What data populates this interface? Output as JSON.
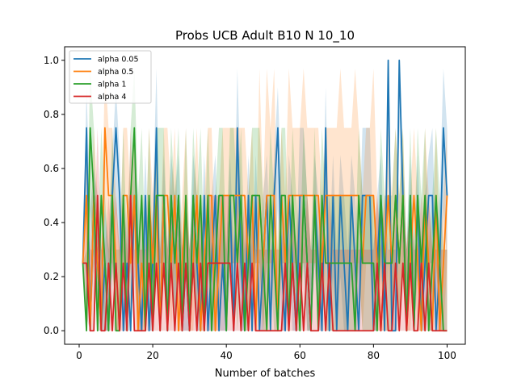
{
  "chart_data": {
    "type": "line",
    "title": "Probs UCB Adult B10 N 10_10",
    "xlabel": "Number of batches",
    "ylabel": "",
    "xlim": [
      -3.95,
      104.95
    ],
    "ylim": [
      -0.05,
      1.05
    ],
    "x_ticks": [
      0,
      20,
      40,
      60,
      80,
      100
    ],
    "y_ticks": [
      0.0,
      0.2,
      0.4,
      0.6,
      0.8,
      1.0
    ],
    "grid": false,
    "legend_placement": "top-left",
    "x": [
      1,
      2,
      3,
      4,
      5,
      6,
      7,
      8,
      9,
      10,
      11,
      12,
      13,
      14,
      15,
      16,
      17,
      18,
      19,
      20,
      21,
      22,
      23,
      24,
      25,
      26,
      27,
      28,
      29,
      30,
      31,
      32,
      33,
      34,
      35,
      36,
      37,
      38,
      39,
      40,
      41,
      42,
      43,
      44,
      45,
      46,
      47,
      48,
      49,
      50,
      51,
      52,
      53,
      54,
      55,
      56,
      57,
      58,
      59,
      60,
      61,
      62,
      63,
      64,
      65,
      66,
      67,
      68,
      69,
      70,
      71,
      72,
      73,
      74,
      75,
      76,
      77,
      78,
      79,
      80,
      81,
      82,
      83,
      84,
      85,
      86,
      87,
      88,
      89,
      90,
      91,
      92,
      93,
      94,
      95,
      96,
      97,
      98,
      99,
      100
    ],
    "series": [
      {
        "name": "alpha 0.05",
        "color": "#1f77b4",
        "values": [
          0.25,
          0.75,
          0,
          0.5,
          0.25,
          0,
          0.25,
          0,
          0.5,
          0.75,
          0.5,
          0,
          0.25,
          0,
          0.5,
          0.25,
          0,
          0.5,
          0,
          0.25,
          0.75,
          0,
          0.5,
          0,
          0.5,
          0.25,
          0.5,
          0,
          0.25,
          0,
          0.5,
          0.25,
          0,
          0.5,
          0,
          0.25,
          0.5,
          0,
          0.25,
          0,
          0.5,
          0,
          0.75,
          0.25,
          0,
          0.5,
          0,
          0.5,
          0,
          0.25,
          0.5,
          0,
          0.5,
          0.75,
          0.25,
          0,
          0.5,
          0.25,
          0,
          0.5,
          0.5,
          0.25,
          0,
          0.5,
          0.25,
          0,
          0.75,
          0,
          0.5,
          0,
          0.5,
          0.25,
          0,
          0.5,
          0.25,
          0,
          0.5,
          0.5,
          0.5,
          0,
          0.25,
          0.5,
          0,
          1.0,
          0,
          0,
          1.0,
          0.5,
          0,
          0.5,
          0,
          0.5,
          0,
          0.25,
          0.5,
          0.5,
          0,
          0.25,
          0.75,
          0.5
        ],
        "band_upper": [
          0.25,
          0.9,
          0.45,
          0.6,
          0.5,
          0.3,
          0.45,
          0.3,
          0.65,
          0.9,
          0.65,
          0.3,
          0.45,
          0.3,
          0.65,
          0.5,
          0.3,
          0.65,
          0.3,
          0.45,
          0.97,
          0.3,
          0.65,
          0.3,
          0.65,
          0.5,
          0.65,
          0.3,
          0.5,
          0.3,
          0.65,
          0.5,
          0.3,
          0.65,
          0.3,
          0.5,
          0.65,
          0.3,
          0.5,
          0.3,
          0.65,
          0.3,
          0.97,
          0.5,
          0.3,
          0.65,
          0.3,
          0.65,
          0.3,
          0.5,
          0.65,
          0.3,
          0.65,
          0.9,
          0.5,
          0.3,
          0.65,
          0.5,
          0.3,
          0.75,
          0.75,
          0.5,
          0.3,
          0.65,
          0.5,
          0.3,
          0.9,
          0.3,
          0.65,
          0.3,
          0.65,
          0.5,
          0.3,
          0.65,
          0.5,
          0.3,
          0.75,
          0.75,
          0.75,
          0.3,
          0.5,
          0.65,
          0.3,
          1.0,
          0.3,
          0.3,
          1.0,
          0.65,
          0.3,
          0.65,
          0.3,
          0.65,
          0.3,
          0.5,
          0.65,
          0.75,
          0.3,
          0.5,
          0.97,
          0.75
        ],
        "band_lower": [
          0.25,
          0.45,
          0,
          0.25,
          0,
          0,
          0,
          0,
          0.2,
          0.45,
          0.25,
          0,
          0,
          0,
          0.2,
          0,
          0,
          0.2,
          0,
          0,
          0.45,
          0,
          0.2,
          0,
          0.2,
          0,
          0.25,
          0,
          0,
          0,
          0.2,
          0,
          0,
          0.2,
          0,
          0,
          0.25,
          0,
          0,
          0,
          0.2,
          0,
          0.45,
          0,
          0,
          0.2,
          0,
          0.25,
          0,
          0,
          0.25,
          0,
          0.25,
          0.45,
          0,
          0,
          0.25,
          0,
          0,
          0.25,
          0.25,
          0,
          0,
          0.25,
          0,
          0,
          0.45,
          0,
          0.2,
          0,
          0.2,
          0,
          0,
          0.2,
          0,
          0,
          0.25,
          0.25,
          0.25,
          0,
          0,
          0.25,
          0,
          0.75,
          0,
          0,
          0.75,
          0.25,
          0,
          0.25,
          0,
          0.2,
          0,
          0,
          0.25,
          0.25,
          0,
          0,
          0.45,
          0.25
        ]
      },
      {
        "name": "alpha 0.5",
        "color": "#ff7f0e",
        "values": [
          0.25,
          0.5,
          0,
          0.5,
          0.25,
          0,
          0.75,
          0.5,
          0.5,
          0.25,
          0,
          0.5,
          0.5,
          0.25,
          0.5,
          0,
          0.25,
          0,
          0.5,
          0.25,
          0.5,
          0,
          0.5,
          0.5,
          0.25,
          0.5,
          0,
          0.25,
          0.5,
          0,
          0.25,
          0.5,
          0,
          0.25,
          0.5,
          0.5,
          0,
          0.25,
          0.5,
          0.5,
          0.5,
          0.5,
          0.5,
          0.5,
          0.5,
          0.25,
          0.5,
          0,
          0.5,
          0.25,
          0.5,
          0.5,
          0.5,
          0,
          0.5,
          0.25,
          0.5,
          0.5,
          0.5,
          0.5,
          0.5,
          0.5,
          0.5,
          0.5,
          0.5,
          0.25,
          0.5,
          0.5,
          0.5,
          0.5,
          0.5,
          0.5,
          0.5,
          0.5,
          0.5,
          0.5,
          0.25,
          0.5,
          0.5,
          0.5,
          0.25,
          0,
          0.25,
          0.5,
          0.25,
          0.5,
          0.25,
          0.5,
          0,
          0.25,
          0.5,
          0.25,
          0,
          0.5,
          0.25,
          0,
          0.5,
          0,
          0.25,
          0.5
        ],
        "band_upper": [
          0.25,
          0.75,
          0.3,
          0.75,
          0.5,
          0.3,
          0.97,
          0.75,
          0.75,
          0.5,
          0.3,
          0.75,
          0.75,
          0.5,
          0.75,
          0.3,
          0.5,
          0.3,
          0.75,
          0.5,
          0.75,
          0.3,
          0.75,
          0.75,
          0.5,
          0.75,
          0.3,
          0.5,
          0.75,
          0.3,
          0.5,
          0.75,
          0.3,
          0.5,
          0.75,
          0.75,
          0.3,
          0.5,
          0.75,
          0.75,
          0.75,
          0.75,
          0.75,
          0.75,
          0.75,
          0.5,
          0.75,
          0.3,
          0.97,
          0.5,
          0.97,
          0.75,
          0.97,
          0.3,
          0.75,
          0.5,
          0.97,
          0.75,
          0.75,
          0.75,
          0.97,
          0.75,
          0.75,
          0.75,
          0.75,
          0.5,
          0.75,
          0.75,
          0.75,
          0.75,
          0.97,
          0.75,
          0.75,
          0.75,
          0.97,
          0.75,
          0.5,
          0.75,
          0.75,
          0.97,
          0.5,
          0.3,
          0.5,
          0.75,
          0.5,
          0.75,
          0.5,
          0.75,
          0.3,
          0.5,
          0.75,
          0.5,
          0.3,
          0.75,
          0.5,
          0.3,
          0.75,
          0.3,
          0.5,
          0.75
        ],
        "band_lower": [
          0.25,
          0.25,
          0,
          0.25,
          0,
          0,
          0.45,
          0.25,
          0.25,
          0,
          0,
          0.25,
          0.25,
          0,
          0.25,
          0,
          0,
          0,
          0.25,
          0,
          0.25,
          0,
          0.25,
          0.25,
          0,
          0.25,
          0,
          0,
          0.25,
          0,
          0,
          0.25,
          0,
          0,
          0.25,
          0.25,
          0,
          0,
          0.25,
          0.25,
          0.25,
          0.25,
          0.25,
          0.25,
          0.25,
          0,
          0.25,
          0,
          0.25,
          0,
          0.25,
          0.25,
          0.25,
          0,
          0.25,
          0,
          0.25,
          0.25,
          0.25,
          0.25,
          0.25,
          0.25,
          0.25,
          0.25,
          0.25,
          0,
          0.25,
          0.25,
          0.25,
          0.25,
          0.25,
          0.25,
          0.25,
          0.25,
          0.25,
          0.25,
          0,
          0.25,
          0.25,
          0.25,
          0,
          0,
          0,
          0.25,
          0,
          0.25,
          0,
          0.25,
          0,
          0,
          0.25,
          0,
          0,
          0.25,
          0,
          0,
          0.25,
          0,
          0,
          0.25
        ]
      },
      {
        "name": "alpha 1",
        "color": "#2ca02c",
        "values": [
          0.25,
          0,
          0.75,
          0.5,
          0,
          0.5,
          0.25,
          0,
          0.5,
          0,
          0,
          0.5,
          0,
          0.5,
          0.75,
          0.25,
          0.5,
          0,
          0.5,
          0,
          0.5,
          0.5,
          0.5,
          0,
          0.5,
          0.25,
          0.5,
          0,
          0.5,
          0,
          0.5,
          0.25,
          0.5,
          0,
          0.5,
          0,
          0.25,
          0.5,
          0.5,
          0,
          0.5,
          0.5,
          0.25,
          0.5,
          0,
          0.25,
          0.5,
          0.5,
          0.5,
          0.25,
          0,
          0.5,
          0.25,
          0,
          0.5,
          0.5,
          0,
          0.5,
          0.25,
          0,
          0.5,
          0.25,
          0,
          0.5,
          0,
          0.5,
          0.25,
          0.25,
          0.25,
          0.25,
          0.25,
          0.25,
          0.25,
          0.25,
          0,
          0.5,
          0.25,
          0.25,
          0.25,
          0.25,
          0,
          0.5,
          0.25,
          0.25,
          0.25,
          0.5,
          0.25,
          0.5,
          0,
          0.5,
          0,
          0.5,
          0.25,
          0.5,
          0,
          0.25,
          0.5,
          0.25,
          0,
          0
        ],
        "band_upper": [
          0.25,
          0.3,
          0.97,
          0.75,
          0.3,
          0.75,
          0.5,
          0.3,
          0.75,
          0.3,
          0.3,
          0.75,
          0.3,
          0.75,
          0.97,
          0.5,
          0.75,
          0.3,
          0.75,
          0.3,
          0.75,
          0.75,
          0.75,
          0.3,
          0.75,
          0.5,
          0.75,
          0.3,
          0.75,
          0.3,
          0.75,
          0.5,
          0.75,
          0.3,
          0.75,
          0.3,
          0.5,
          0.75,
          0.75,
          0.3,
          0.75,
          0.75,
          0.5,
          0.75,
          0.3,
          0.5,
          0.75,
          0.75,
          0.75,
          0.5,
          0.3,
          0.75,
          0.5,
          0.3,
          0.75,
          0.75,
          0.3,
          0.75,
          0.5,
          0.3,
          0.75,
          0.5,
          0.3,
          0.75,
          0.3,
          0.75,
          0.5,
          0.5,
          0.5,
          0.5,
          0.5,
          0.5,
          0.5,
          0.5,
          0.3,
          0.75,
          0.5,
          0.5,
          0.5,
          0.5,
          0.3,
          0.75,
          0.5,
          0.5,
          0.5,
          0.75,
          0.5,
          0.75,
          0.3,
          0.75,
          0.3,
          0.75,
          0.5,
          0.75,
          0.3,
          0.5,
          0.75,
          0.5,
          0.3,
          0.3
        ],
        "band_lower": [
          0.25,
          0,
          0.45,
          0.25,
          0,
          0.25,
          0,
          0,
          0.25,
          0,
          0,
          0.25,
          0,
          0.25,
          0.45,
          0,
          0.25,
          0,
          0.25,
          0,
          0.25,
          0.25,
          0.25,
          0,
          0.25,
          0,
          0.25,
          0,
          0.25,
          0,
          0.25,
          0,
          0.25,
          0,
          0.25,
          0,
          0,
          0.25,
          0.25,
          0,
          0.25,
          0.25,
          0,
          0.25,
          0,
          0,
          0.25,
          0.25,
          0.25,
          0,
          0,
          0.25,
          0,
          0,
          0.25,
          0.25,
          0,
          0.25,
          0,
          0,
          0.25,
          0,
          0,
          0.25,
          0,
          0.25,
          0,
          0,
          0,
          0,
          0,
          0,
          0,
          0,
          0,
          0.25,
          0,
          0,
          0,
          0,
          0,
          0.25,
          0,
          0,
          0,
          0.25,
          0,
          0.25,
          0,
          0.25,
          0,
          0.25,
          0,
          0.25,
          0,
          0,
          0.25,
          0,
          0,
          0
        ]
      },
      {
        "name": "alpha 4",
        "color": "#d62728",
        "values": [
          0.25,
          0.25,
          0,
          0,
          0.5,
          0,
          0,
          0.25,
          0,
          0.25,
          0,
          0.25,
          0,
          0.5,
          0,
          0,
          0,
          0,
          0.25,
          0,
          0.25,
          0,
          0.25,
          0,
          0.25,
          0,
          0.25,
          0,
          0.25,
          0,
          0.25,
          0,
          0.25,
          0,
          0.25,
          0.25,
          0.25,
          0.25,
          0.25,
          0.25,
          0.25,
          0,
          0.25,
          0,
          0.25,
          0,
          0.25,
          0,
          0,
          0,
          0,
          0,
          0,
          0,
          0,
          0.25,
          0,
          0.25,
          0,
          0.25,
          0,
          0.25,
          0,
          0,
          0,
          0.25,
          0,
          0.25,
          0,
          0,
          0,
          0,
          0,
          0,
          0,
          0,
          0,
          0,
          0,
          0,
          0.25,
          0,
          0.25,
          0,
          0,
          0.25,
          0,
          0.25,
          0,
          0.25,
          0,
          0,
          0.25,
          0,
          0.25,
          0,
          0,
          0,
          0,
          0
        ],
        "band_upper": [
          0.25,
          0.45,
          0.3,
          0.3,
          0.75,
          0.3,
          0.3,
          0.5,
          0.3,
          0.5,
          0.3,
          0.5,
          0.3,
          0.75,
          0.3,
          0.3,
          0.3,
          0.3,
          0.5,
          0.3,
          0.5,
          0.3,
          0.5,
          0.3,
          0.5,
          0.3,
          0.5,
          0.3,
          0.5,
          0.3,
          0.5,
          0.3,
          0.5,
          0.3,
          0.5,
          0.5,
          0.5,
          0.5,
          0.5,
          0.5,
          0.5,
          0.3,
          0.5,
          0.3,
          0.5,
          0.3,
          0.5,
          0.3,
          0.3,
          0.3,
          0.3,
          0.3,
          0.3,
          0.3,
          0.3,
          0.5,
          0.3,
          0.5,
          0.3,
          0.5,
          0.3,
          0.5,
          0.3,
          0.3,
          0.3,
          0.5,
          0.3,
          0.5,
          0.3,
          0.3,
          0.3,
          0.3,
          0.3,
          0.3,
          0.3,
          0.3,
          0.3,
          0.3,
          0.3,
          0.3,
          0.5,
          0.3,
          0.5,
          0.3,
          0.3,
          0.5,
          0.3,
          0.5,
          0.3,
          0.5,
          0.3,
          0.3,
          0.5,
          0.3,
          0.5,
          0.3,
          0.3,
          0.3,
          0.3,
          0.3
        ],
        "band_lower": [
          0.25,
          0.05,
          0,
          0,
          0.25,
          0,
          0,
          0,
          0,
          0,
          0,
          0,
          0,
          0.25,
          0,
          0,
          0,
          0,
          0,
          0,
          0,
          0,
          0,
          0,
          0,
          0,
          0,
          0,
          0,
          0,
          0,
          0,
          0,
          0,
          0,
          0,
          0,
          0,
          0,
          0,
          0,
          0,
          0,
          0,
          0,
          0,
          0,
          0,
          0,
          0,
          0,
          0,
          0,
          0,
          0,
          0,
          0,
          0,
          0,
          0,
          0,
          0,
          0,
          0,
          0,
          0,
          0,
          0,
          0,
          0,
          0,
          0,
          0,
          0,
          0,
          0,
          0,
          0,
          0,
          0,
          0,
          0,
          0,
          0,
          0,
          0,
          0,
          0,
          0,
          0,
          0,
          0,
          0,
          0,
          0,
          0,
          0,
          0,
          0,
          0
        ]
      }
    ]
  }
}
